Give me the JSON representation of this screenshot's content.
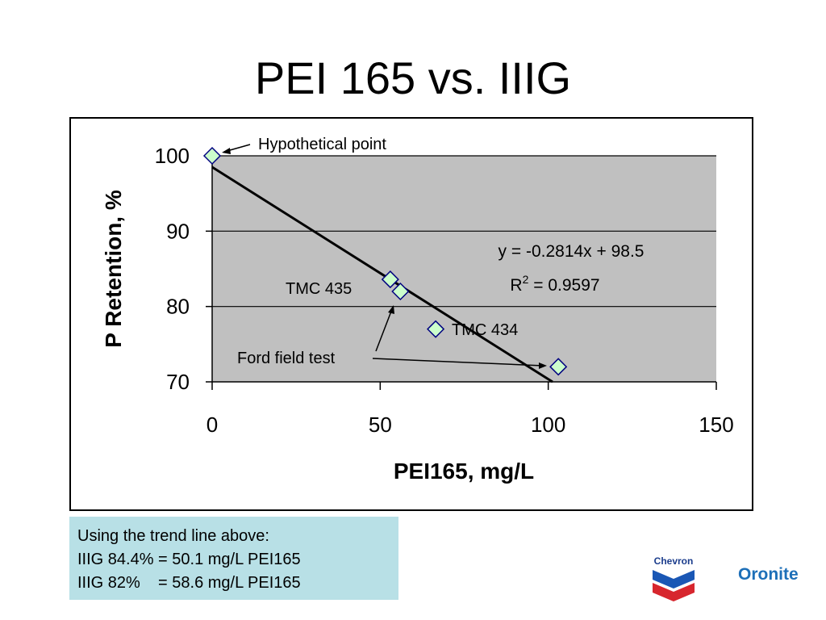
{
  "slide": {
    "title": "PEI 165 vs. IIIG"
  },
  "chart_data": {
    "type": "scatter",
    "xlabel": "PEI165, mg/L",
    "ylabel": "P Retention, %",
    "xlim": [
      0,
      150
    ],
    "ylim": [
      70,
      100
    ],
    "xticks": [
      0,
      50,
      100,
      150
    ],
    "yticks": [
      70,
      80,
      90,
      100
    ],
    "grid": "horizontal",
    "plot_background": "#c0c0c0",
    "marker_fill": "#ccffcc",
    "marker_edge": "#000080",
    "points": [
      {
        "x": 0,
        "y": 100
      },
      {
        "x": 53,
        "y": 83.6
      },
      {
        "x": 56,
        "y": 82
      },
      {
        "x": 66.5,
        "y": 77
      },
      {
        "x": 103,
        "y": 72
      }
    ],
    "trendline": {
      "slope": -0.2814,
      "intercept": 98.5
    },
    "equation": {
      "main": "y = -0.2814x + 98.5",
      "r_prefix": "R",
      "r_sup": "2",
      "r_suffix": " = 0.9597"
    },
    "annotations": {
      "hypothetical": "Hypothetical point",
      "tmc435": "TMC 435",
      "tmc434": "TMC 434",
      "ford": "Ford field test"
    }
  },
  "note": {
    "lines": [
      "Using the trend line above:",
      "IIIG 84.4% = 50.1 mg/L PEI165",
      "IIIG 82%    = 58.6 mg/L PEI165"
    ]
  },
  "logos": {
    "chevron": "Chevron",
    "oronite": "Oronite"
  }
}
